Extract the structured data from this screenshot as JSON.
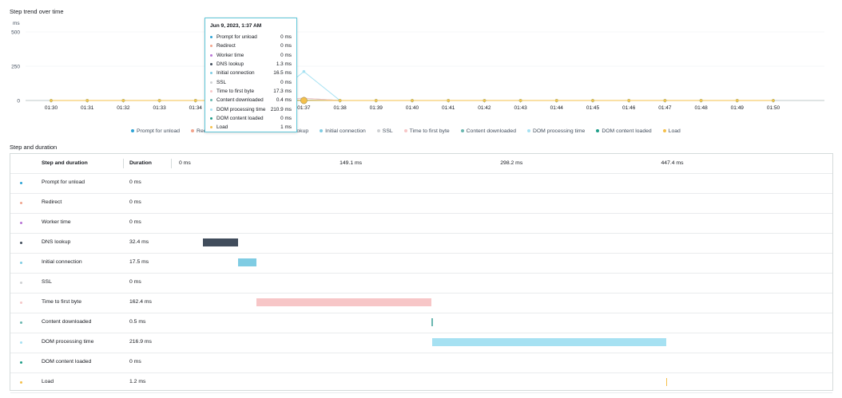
{
  "trend_title": "Step trend over time",
  "chart_data": {
    "type": "line",
    "ylabel": "ms",
    "ylim": [
      0,
      500
    ],
    "yticks": [
      "0",
      "250",
      "500"
    ],
    "categories": [
      "01:30",
      "01:31",
      "01:32",
      "01:33",
      "01:34",
      "01:35",
      "01:36",
      "01:37",
      "01:38",
      "01:39",
      "01:40",
      "01:41",
      "01:42",
      "01:43",
      "01:44",
      "01:45",
      "01:46",
      "01:47",
      "01:48",
      "01:49",
      "01:50"
    ],
    "series": [
      {
        "name": "Prompt for unload",
        "color": "#2ea3d6",
        "values": [
          0,
          0,
          0,
          0,
          0,
          0,
          0,
          0,
          0,
          0,
          0,
          0,
          0,
          0,
          0,
          0,
          0,
          0,
          0,
          0,
          0
        ]
      },
      {
        "name": "Redirect",
        "color": "#f2a48c",
        "values": [
          0,
          0,
          0,
          0,
          0,
          0,
          0,
          0,
          0,
          0,
          0,
          0,
          0,
          0,
          0,
          0,
          0,
          0,
          0,
          0,
          0
        ]
      },
      {
        "name": "Worker time",
        "color": "#b875d6",
        "values": [
          0,
          0,
          0,
          0,
          0,
          0,
          0,
          0,
          0,
          0,
          0,
          0,
          0,
          0,
          0,
          0,
          0,
          0,
          0,
          0,
          0
        ]
      },
      {
        "name": "DNS lookup",
        "color": "#414d5c",
        "values": [
          0,
          0,
          0,
          0,
          0,
          0,
          0,
          1.3,
          0,
          0,
          0,
          0,
          0,
          0,
          0,
          0,
          0,
          0,
          0,
          0,
          0
        ]
      },
      {
        "name": "Initial connection",
        "color": "#7fcce3",
        "values": [
          0,
          0,
          0,
          0,
          0,
          0,
          0,
          16.5,
          0,
          0,
          0,
          0,
          0,
          0,
          0,
          0,
          0,
          0,
          0,
          0,
          0
        ]
      },
      {
        "name": "SSL",
        "color": "#cfd1d3",
        "values": [
          0,
          0,
          0,
          0,
          0,
          0,
          0,
          0,
          0,
          0,
          0,
          0,
          0,
          0,
          0,
          0,
          0,
          0,
          0,
          0,
          0
        ]
      },
      {
        "name": "Time to first byte",
        "color": "#f7c6c7",
        "values": [
          0,
          0,
          0,
          0,
          0,
          0,
          0,
          17.3,
          0,
          0,
          0,
          0,
          0,
          0,
          0,
          0,
          0,
          0,
          0,
          0,
          0
        ]
      },
      {
        "name": "Content downloaded",
        "color": "#6ab7b0",
        "values": [
          0,
          0,
          0,
          0,
          0,
          0,
          0,
          0.4,
          0,
          0,
          0,
          0,
          0,
          0,
          0,
          0,
          0,
          0,
          0,
          0,
          0
        ]
      },
      {
        "name": "DOM processing time",
        "color": "#a6e1f2",
        "values": [
          0,
          0,
          0,
          0,
          0,
          0,
          0,
          210.9,
          0,
          0,
          0,
          0,
          0,
          0,
          0,
          0,
          0,
          0,
          0,
          0,
          0
        ]
      },
      {
        "name": "DOM content loaded",
        "color": "#1f9e89",
        "values": [
          0,
          0,
          0,
          0,
          0,
          0,
          0,
          0,
          0,
          0,
          0,
          0,
          0,
          0,
          0,
          0,
          0,
          0,
          0,
          0,
          0
        ]
      },
      {
        "name": "Load",
        "color": "#f5c04b",
        "values": [
          0,
          0,
          0,
          0,
          0,
          0,
          0,
          1,
          0,
          0,
          0,
          0,
          0,
          0,
          0,
          0,
          0,
          0,
          0,
          0,
          0
        ]
      }
    ]
  },
  "tooltip": {
    "title": "Jun 9, 2023, 1:37 AM",
    "rows": [
      {
        "label": "Prompt for unload",
        "value": "0 ms",
        "color": "#2ea3d6"
      },
      {
        "label": "Redirect",
        "value": "0 ms",
        "color": "#f2a48c"
      },
      {
        "label": "Worker time",
        "value": "0 ms",
        "color": "#b875d6"
      },
      {
        "label": "DNS lookup",
        "value": "1.3 ms",
        "color": "#414d5c"
      },
      {
        "label": "Initial connection",
        "value": "16.5 ms",
        "color": "#7fcce3"
      },
      {
        "label": "SSL",
        "value": "0 ms",
        "color": "#cfd1d3"
      },
      {
        "label": "Time to first byte",
        "value": "17.3 ms",
        "color": "#f7c6c7"
      },
      {
        "label": "Content downloaded",
        "value": "0.4 ms",
        "color": "#6ab7b0"
      },
      {
        "label": "DOM processing time",
        "value": "210.9 ms",
        "color": "#a6e1f2"
      },
      {
        "label": "DOM content loaded",
        "value": "0 ms",
        "color": "#1f9e89"
      },
      {
        "label": "Load",
        "value": "1 ms",
        "color": "#f5c04b"
      }
    ]
  },
  "step_title": "Step and duration",
  "table": {
    "headers": {
      "step": "Step and duration",
      "duration": "Duration"
    },
    "axis": {
      "max_ms": 596,
      "ticks": [
        {
          "label": "0 ms",
          "value": 0
        },
        {
          "label": "149.1 ms",
          "value": 149.1
        },
        {
          "label": "298.2 ms",
          "value": 298.2
        },
        {
          "label": "447.4 ms",
          "value": 447.4
        }
      ]
    },
    "rows": [
      {
        "name": "Prompt for unload",
        "duration": "0 ms",
        "color": "#2ea3d6",
        "start": 0,
        "length": 0
      },
      {
        "name": "Redirect",
        "duration": "0 ms",
        "color": "#f2a48c",
        "start": 0,
        "length": 0
      },
      {
        "name": "Worker time",
        "duration": "0 ms",
        "color": "#b875d6",
        "start": 0,
        "length": 0
      },
      {
        "name": "DNS lookup",
        "duration": "32.4 ms",
        "color": "#414d5c",
        "start": 22.2,
        "length": 32.4
      },
      {
        "name": "Initial connection",
        "duration": "17.5 ms",
        "color": "#7fcce3",
        "start": 54.6,
        "length": 17.5
      },
      {
        "name": "SSL",
        "duration": "0 ms",
        "color": "#cfd1d3",
        "start": 0,
        "length": 0
      },
      {
        "name": "Time to first byte",
        "duration": "162.4 ms",
        "color": "#f7c6c7",
        "start": 72.1,
        "length": 162.4
      },
      {
        "name": "Content downloaded",
        "duration": "0.5 ms",
        "color": "#6ab7b0",
        "start": 234.5,
        "length": 0.5
      },
      {
        "name": "DOM processing time",
        "duration": "216.9 ms",
        "color": "#a6e1f2",
        "start": 235.0,
        "length": 216.9
      },
      {
        "name": "DOM content loaded",
        "duration": "0 ms",
        "color": "#1f9e89",
        "start": 0,
        "length": 0
      },
      {
        "name": "Load",
        "duration": "1.2 ms",
        "color": "#f5c04b",
        "start": 451.9,
        "length": 1.2
      }
    ]
  }
}
